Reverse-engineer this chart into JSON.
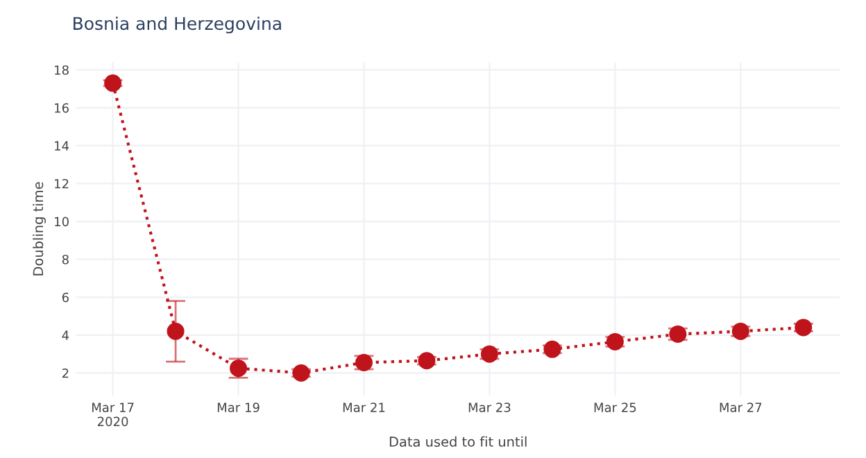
{
  "chart_data": {
    "type": "line",
    "title": "Bosnia and Herzegovina",
    "xlabel": "Data used to fit until",
    "ylabel": "Doubling time",
    "x": [
      "2020-03-17",
      "2020-03-18",
      "2020-03-19",
      "2020-03-20",
      "2020-03-21",
      "2020-03-22",
      "2020-03-23",
      "2020-03-24",
      "2020-03-25",
      "2020-03-26",
      "2020-03-27",
      "2020-03-28"
    ],
    "series": [
      {
        "color": "#c0141c",
        "values": [
          17.3,
          4.2,
          2.25,
          2.0,
          2.55,
          2.65,
          3.0,
          3.25,
          3.65,
          4.05,
          4.2,
          4.4
        ],
        "errors": [
          0.15,
          [
            2.6,
            5.8
          ],
          [
            1.75,
            2.75
          ],
          0.2,
          [
            2.2,
            2.9
          ],
          0.2,
          0.25,
          0.2,
          0.25,
          0.3,
          0.25,
          0.2
        ]
      }
    ],
    "xlim": [
      "2020-03-16T10:00",
      "2020-03-28T14:00"
    ],
    "ylim": [
      0.8,
      18.4
    ],
    "xticks": [
      {
        "value": "2020-03-17",
        "label": "Mar 17\n2020"
      },
      {
        "value": "2020-03-19",
        "label": "Mar 19"
      },
      {
        "value": "2020-03-21",
        "label": "Mar 21"
      },
      {
        "value": "2020-03-23",
        "label": "Mar 23"
      },
      {
        "value": "2020-03-25",
        "label": "Mar 25"
      },
      {
        "value": "2020-03-27",
        "label": "Mar 27"
      }
    ],
    "yticks": [
      2,
      4,
      6,
      8,
      10,
      12,
      14,
      16,
      18
    ],
    "grid": true,
    "marker": "circle",
    "line_style": "dotted"
  }
}
